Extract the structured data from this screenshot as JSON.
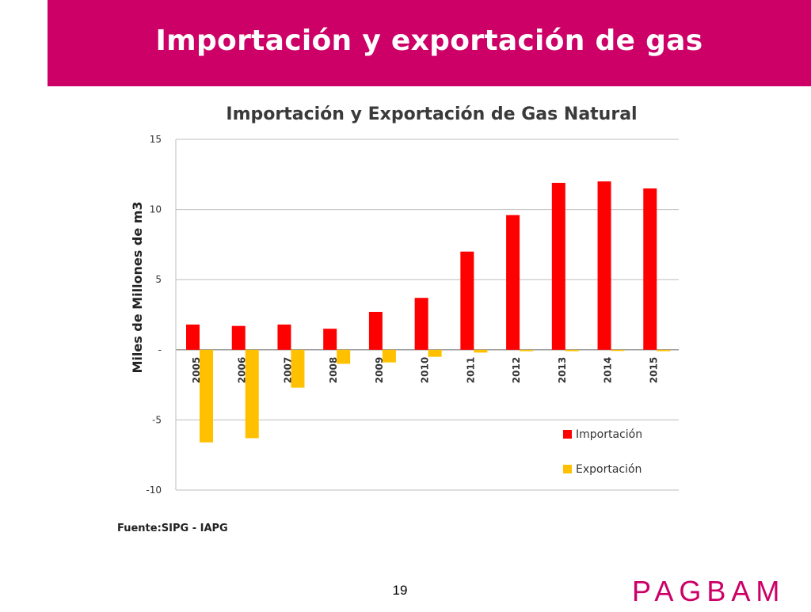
{
  "slide": {
    "title": "Importación y exportación de gas",
    "source": "Fuente:SIPG - IAPG",
    "page_number": "19",
    "brand": "PAGBAM",
    "banner_color": "#cc0066"
  },
  "chart_data": {
    "type": "bar",
    "title": "Importación y Exportación de Gas Natural",
    "xlabel": "",
    "ylabel": "Miles de Millones de m3",
    "ylim": [
      -10,
      15
    ],
    "yticks": [
      15,
      10,
      5,
      0,
      -5,
      -10
    ],
    "ytick_labels": [
      "15",
      "10",
      "5",
      "-",
      "-5",
      "-10"
    ],
    "categories": [
      "2005",
      "2006",
      "2007",
      "2008",
      "2009",
      "2010",
      "2011",
      "2012",
      "2013",
      "2014",
      "2015"
    ],
    "series": [
      {
        "name": "Importación",
        "color": "#ff0000",
        "values": [
          1.8,
          1.7,
          1.8,
          1.5,
          2.7,
          3.7,
          7.0,
          9.6,
          11.9,
          12.0,
          11.5
        ]
      },
      {
        "name": "Exportación",
        "color": "#ffc000",
        "values": [
          -6.6,
          -6.3,
          -2.7,
          -1.0,
          -0.9,
          -0.5,
          -0.2,
          -0.1,
          -0.1,
          -0.05,
          -0.1
        ]
      }
    ],
    "grid": true,
    "legend_position": "bottom-right"
  }
}
